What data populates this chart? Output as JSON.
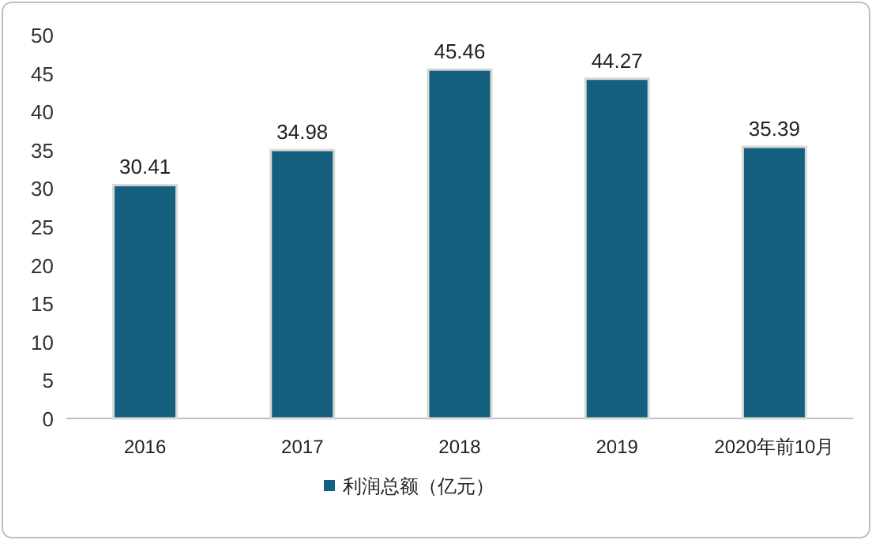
{
  "chart_data": {
    "type": "bar",
    "categories": [
      "2016",
      "2017",
      "2018",
      "2019",
      "2020年前10月"
    ],
    "series": [
      {
        "name": "利润总额（亿元）",
        "color": "#15607f",
        "values": [
          30.41,
          34.98,
          45.46,
          44.27,
          35.39
        ]
      }
    ],
    "ylim": [
      0,
      50
    ],
    "yticks": [
      0,
      5,
      10,
      15,
      20,
      25,
      30,
      35,
      40,
      45,
      50
    ],
    "data_labels": true,
    "legend": "bottom"
  }
}
